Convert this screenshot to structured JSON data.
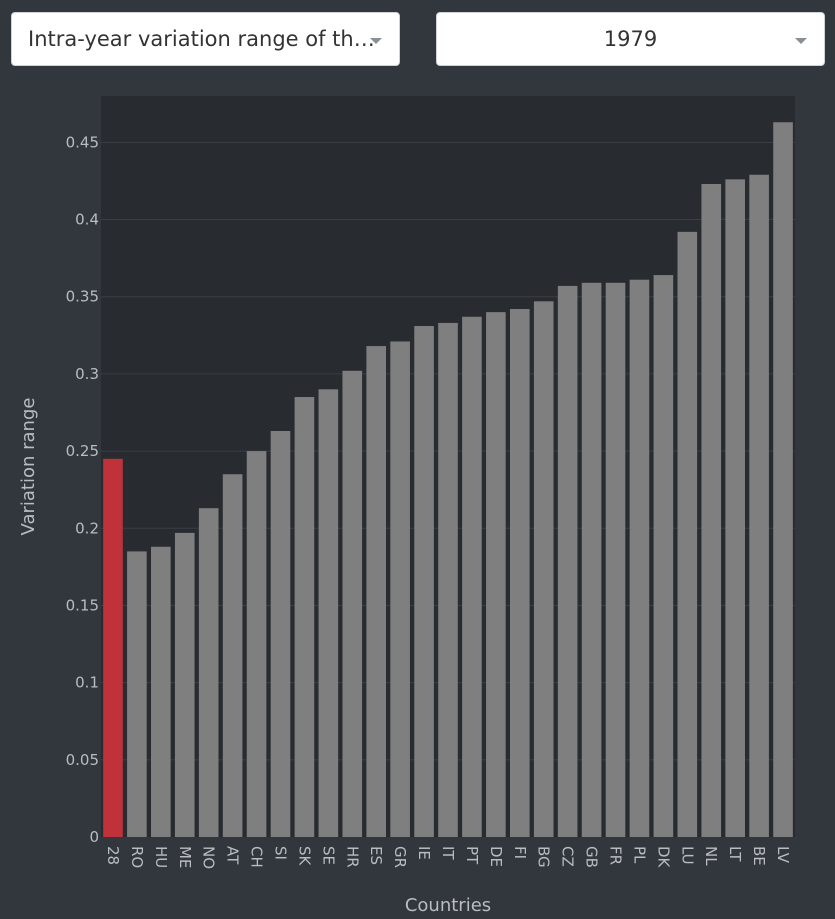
{
  "controls": {
    "metric_dropdown": {
      "value": "Intra-year variation range of the..."
    },
    "year_dropdown": {
      "value": "1979"
    }
  },
  "colors": {
    "page_background": "#32363d",
    "plot_background": "#282b30",
    "bar_default": "#7f7f7f",
    "bar_highlight": "#c0323a",
    "gridline": "#3a3e45",
    "text": "#b9bcc2"
  },
  "chart_data": {
    "type": "bar",
    "xlabel": "Countries",
    "ylabel": "Variation range",
    "ylim": [
      0,
      0.48
    ],
    "yticks": [
      0,
      0.05,
      0.1,
      0.15,
      0.2,
      0.25,
      0.3,
      0.35,
      0.4,
      0.45
    ],
    "ytick_labels": [
      "0",
      "0.05",
      "0.1",
      "0.15",
      "0.2",
      "0.25",
      "0.3",
      "0.35",
      "0.4",
      "0.45"
    ],
    "grid": true,
    "highlight_category": "28",
    "categories": [
      "28",
      "RO",
      "HU",
      "ME",
      "NO",
      "AT",
      "CH",
      "SI",
      "SK",
      "SE",
      "HR",
      "ES",
      "GR",
      "IE",
      "IT",
      "PT",
      "DE",
      "FI",
      "BG",
      "CZ",
      "GB",
      "FR",
      "PL",
      "DK",
      "LU",
      "NL",
      "LT",
      "BE",
      "LV"
    ],
    "values": [
      0.245,
      0.185,
      0.188,
      0.197,
      0.213,
      0.235,
      0.25,
      0.263,
      0.285,
      0.29,
      0.302,
      0.318,
      0.321,
      0.331,
      0.333,
      0.337,
      0.34,
      0.342,
      0.347,
      0.357,
      0.359,
      0.359,
      0.361,
      0.364,
      0.392,
      0.423,
      0.426,
      0.429,
      0.463
    ]
  }
}
